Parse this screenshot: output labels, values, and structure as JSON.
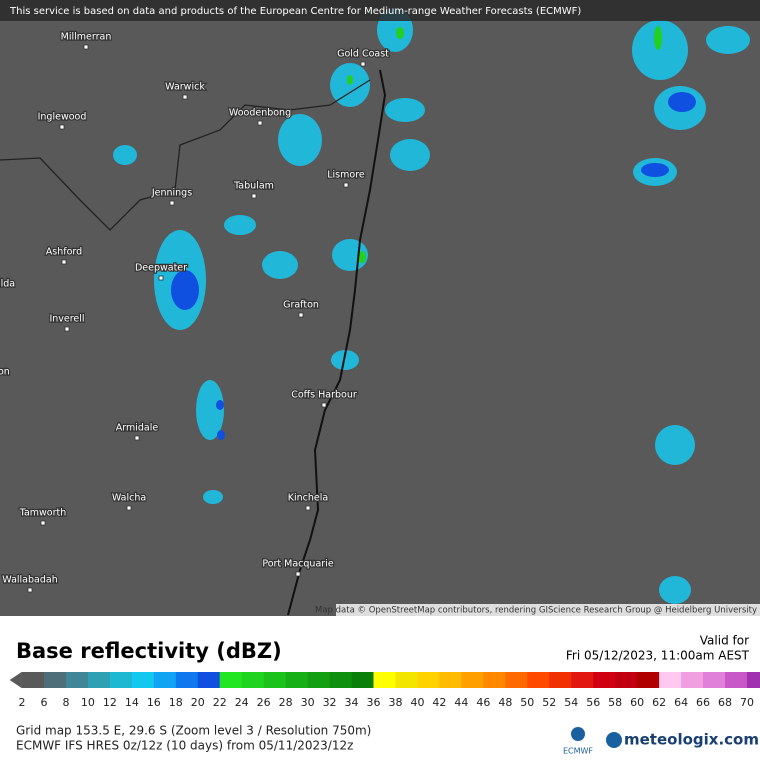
{
  "header": {
    "notice": "This service is based on data and products of the European Centre for Medium-range Weather Forecasts (ECMWF)"
  },
  "map": {
    "places": [
      "Millmerran",
      "Warwick",
      "Gold Coast",
      "Inglewood",
      "Woodenbong",
      "Lismore",
      "Jennings",
      "Tabulam",
      "Ashford",
      "Deepwater",
      "Grafton",
      "Inverell",
      "Coffs Harbour",
      "Armidale",
      "Walcha",
      "Kinchela",
      "Tamworth",
      "Port Macquarie",
      "Wallabadah",
      "ilda",
      "on"
    ],
    "attribution": "Map data © OpenStreetMap contributors, rendering GIScience Research Group @ Heidelberg University"
  },
  "legend": {
    "title": "Base reflectivity (dBZ)",
    "valid_label": "Valid for",
    "valid_time": "Fri 05/12/2023, 11:00am AEST",
    "ticks": [
      2,
      6,
      8,
      10,
      12,
      14,
      16,
      18,
      20,
      22,
      24,
      26,
      28,
      30,
      32,
      34,
      36,
      38,
      40,
      42,
      44,
      46,
      48,
      50,
      52,
      54,
      56,
      58,
      60,
      62,
      64,
      66,
      68,
      70
    ],
    "colors": [
      "#5a5a5a",
      "#4f6f78",
      "#3f8696",
      "#2f9fb4",
      "#1fb8d2",
      "#12c8ee",
      "#10a4f2",
      "#1078ee",
      "#104ee0",
      "#22e622",
      "#1ed41e",
      "#1ac21a",
      "#16b016",
      "#12a012",
      "#0e900e",
      "#0a800a",
      "#ffff00",
      "#f2e600",
      "#ffd200",
      "#ffbb00",
      "#ffa000",
      "#ff8800",
      "#ff6a00",
      "#ff4a00",
      "#f03000",
      "#e01810",
      "#d00010",
      "#c00010",
      "#b00000",
      "#ffc8f0",
      "#f0a0e0",
      "#e080d8",
      "#c858c8",
      "#a030b0"
    ]
  },
  "footer": {
    "grid_info": "Grid map 153.5 E, 29.6 S (Zoom level 3 / Resolution 750m)",
    "model_info": "ECMWF IFS HRES 0z/12z (10 days) from  05/11/2023/12z",
    "ecmwf_logo": "ECMWF",
    "brand": "meteologix.com"
  }
}
